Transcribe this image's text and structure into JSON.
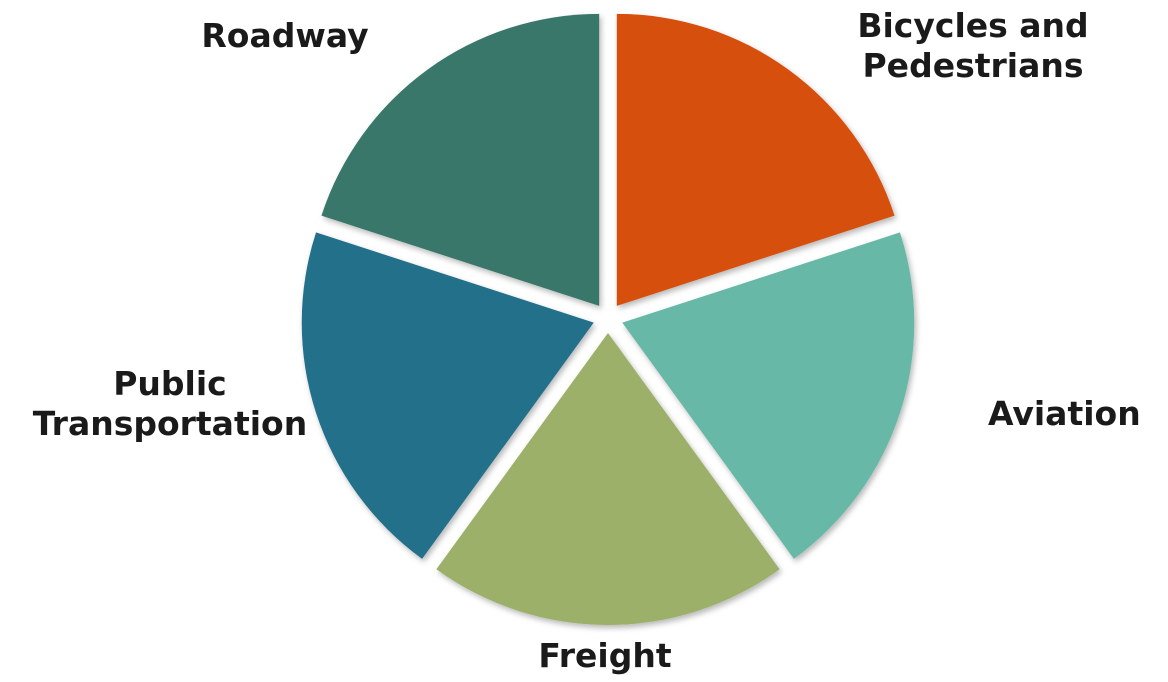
{
  "diagram": {
    "segments": [
      {
        "id": "roadway",
        "label_lines": [
          "Roadway"
        ],
        "color": "#38776b"
      },
      {
        "id": "bicycles-pedestrians",
        "label_lines": [
          "Bicycles and",
          "Pedestrians"
        ],
        "color": "#d64f0b"
      },
      {
        "id": "aviation",
        "label_lines": [
          "Aviation"
        ],
        "color": "#68b8a8"
      },
      {
        "id": "freight",
        "label_lines": [
          "Freight"
        ],
        "color": "#9db06b"
      },
      {
        "id": "public-transportation",
        "label_lines": [
          "Public",
          "Transportation"
        ],
        "color": "#246f8a"
      }
    ]
  }
}
